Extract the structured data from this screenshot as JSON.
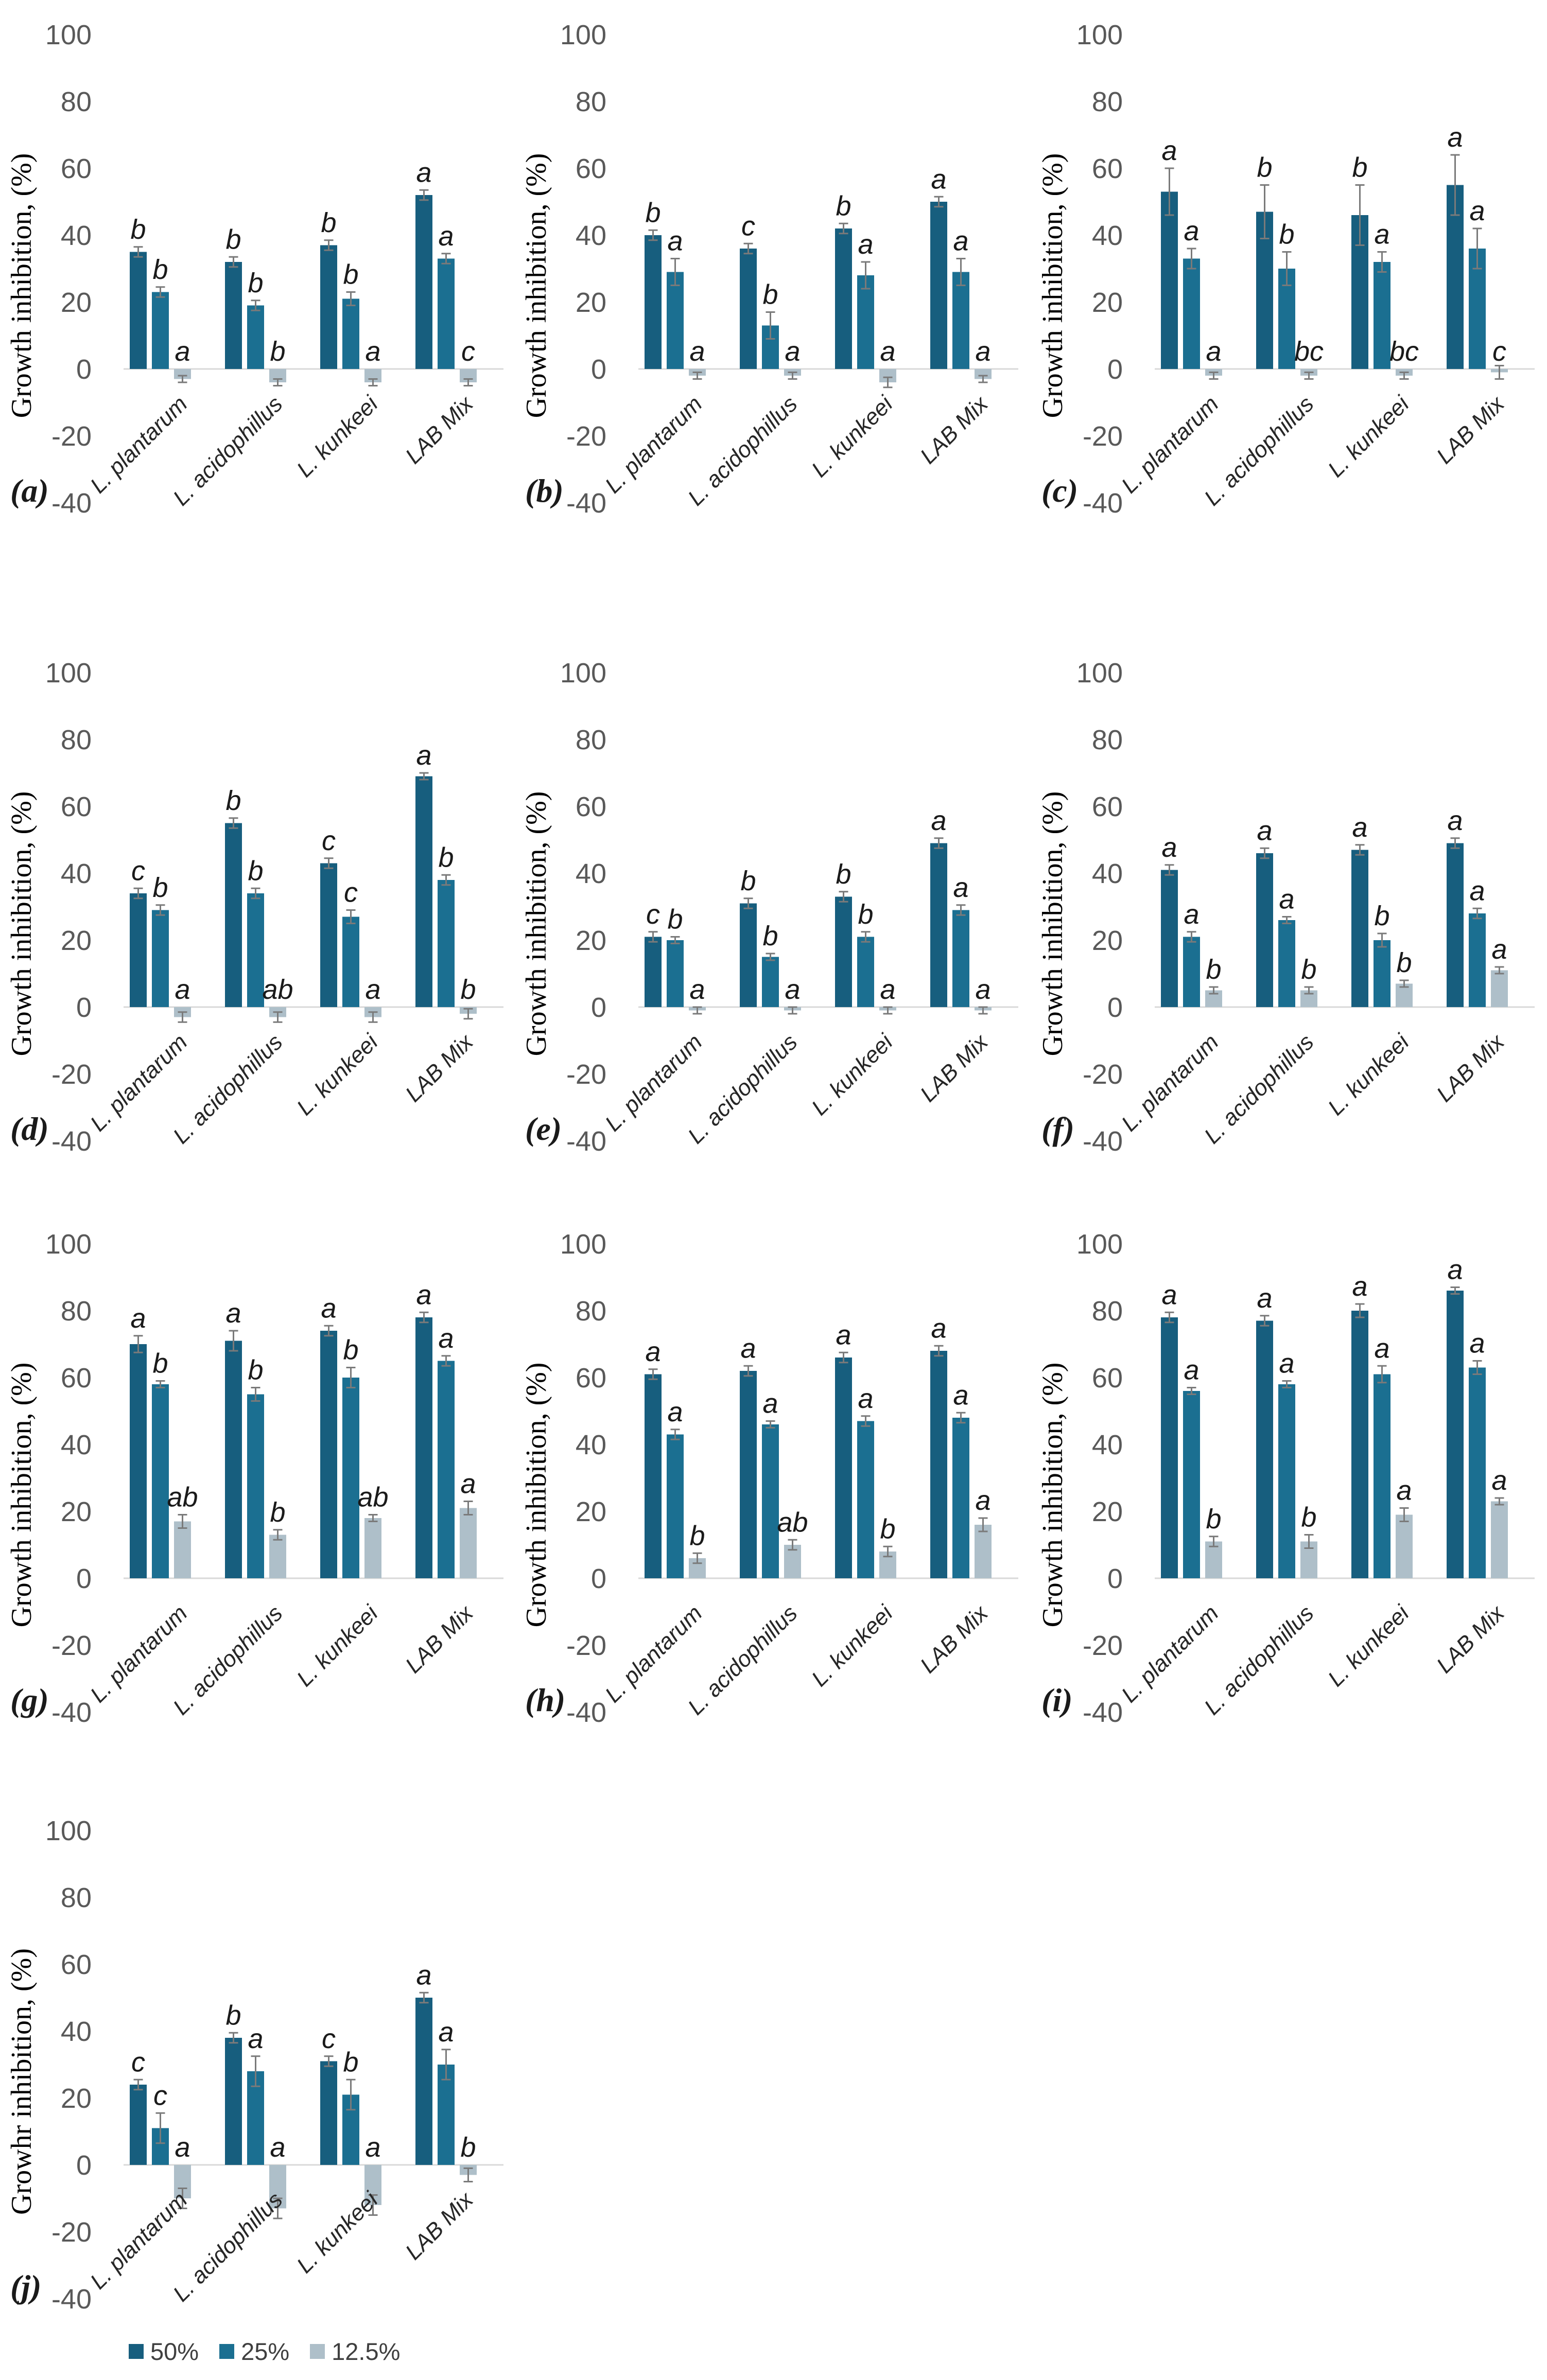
{
  "figure": {
    "background": "#ffffff",
    "description_title": ""
  },
  "legend": {
    "position": "bottom",
    "items": [
      {
        "label": "50%",
        "color": "#175e7e"
      },
      {
        "label": "25%",
        "color": "#1b6f91"
      },
      {
        "label": "12.5%",
        "color": "#aebfc9"
      }
    ]
  },
  "style_colors": {
    "tick_text": "#595959",
    "error_bar": "#7a7a7a",
    "zero_line": "#d9d9d9",
    "letter_text": "#1a1a1a",
    "category_text": "#262626",
    "ylabel_text": "#000000"
  },
  "chart_data": [
    {
      "type": "bar",
      "panel_label": "(a)",
      "ylabel": "Growth inhibition, (%)",
      "ylim": [
        -40,
        100
      ],
      "yticks": [
        100,
        80,
        60,
        40,
        20,
        0,
        -20,
        -40
      ],
      "grid": false,
      "categories": [
        "L. plantarum",
        "L. acidophillus",
        "L. kunkeei",
        "LAB Mix"
      ],
      "series": [
        {
          "name": "50%",
          "values": [
            35,
            32,
            37,
            52
          ],
          "errors": [
            1.5,
            1.5,
            1.5,
            1.5
          ],
          "letters": [
            "b",
            "b",
            "b",
            "a"
          ]
        },
        {
          "name": "25%",
          "values": [
            23,
            19,
            21,
            33
          ],
          "errors": [
            1.5,
            1.5,
            2,
            1.5
          ],
          "letters": [
            "b",
            "b",
            "b",
            "a"
          ]
        },
        {
          "name": "12.5%",
          "values": [
            -3,
            -4,
            -4,
            -4
          ],
          "errors": [
            1,
            1,
            1,
            1
          ],
          "letters": [
            "a",
            "b",
            "a",
            "c"
          ]
        }
      ]
    },
    {
      "type": "bar",
      "panel_label": "(b)",
      "ylabel": "Growth inhibition, (%)",
      "ylim": [
        -40,
        100
      ],
      "yticks": [
        100,
        80,
        60,
        40,
        20,
        0,
        -20,
        -40
      ],
      "grid": false,
      "categories": [
        "L. plantarum",
        "L. acidophillus",
        "L. kunkeei",
        "LAB Mix"
      ],
      "series": [
        {
          "name": "50%",
          "values": [
            40,
            36,
            42,
            50
          ],
          "errors": [
            1.5,
            1.5,
            1.5,
            1.5
          ],
          "letters": [
            "b",
            "c",
            "b",
            "a"
          ]
        },
        {
          "name": "25%",
          "values": [
            29,
            13,
            28,
            29
          ],
          "errors": [
            4,
            4,
            4,
            4
          ],
          "letters": [
            "a",
            "b",
            "a",
            "a"
          ]
        },
        {
          "name": "12.5%",
          "values": [
            -2,
            -2,
            -4,
            -3
          ],
          "errors": [
            1,
            1,
            1.5,
            1
          ],
          "letters": [
            "a",
            "a",
            "a",
            "a"
          ]
        }
      ]
    },
    {
      "type": "bar",
      "panel_label": "(c)",
      "ylabel": "Growth inhibition, (%)",
      "ylim": [
        -40,
        100
      ],
      "yticks": [
        100,
        80,
        60,
        40,
        20,
        0,
        -20,
        -40
      ],
      "grid": false,
      "categories": [
        "L. plantarum",
        "L. acidophillus",
        "L. kunkeei",
        "LAB Mix"
      ],
      "series": [
        {
          "name": "50%",
          "values": [
            53,
            47,
            46,
            55
          ],
          "errors": [
            7,
            8,
            9,
            9
          ],
          "letters": [
            "a",
            "b",
            "b",
            "a"
          ]
        },
        {
          "name": "25%",
          "values": [
            33,
            30,
            32,
            36
          ],
          "errors": [
            3,
            5,
            3,
            6
          ],
          "letters": [
            "a",
            "b",
            "a",
            "a"
          ]
        },
        {
          "name": "12.5%",
          "values": [
            -2,
            -2,
            -2,
            -1
          ],
          "errors": [
            1,
            1,
            1,
            2
          ],
          "letters": [
            "a",
            "bc",
            "bc",
            "c"
          ]
        }
      ]
    },
    {
      "type": "bar",
      "panel_label": "(d)",
      "ylabel": "Growth inhibition, (%)",
      "ylim": [
        -40,
        100
      ],
      "yticks": [
        100,
        80,
        60,
        40,
        20,
        0,
        -20,
        -40
      ],
      "grid": false,
      "categories": [
        "L. plantarum",
        "L. acidophillus",
        "L. kunkeei",
        "LAB Mix"
      ],
      "series": [
        {
          "name": "50%",
          "values": [
            34,
            55,
            43,
            69
          ],
          "errors": [
            1.5,
            1.5,
            1.5,
            1
          ],
          "letters": [
            "c",
            "b",
            "c",
            "a"
          ]
        },
        {
          "name": "25%",
          "values": [
            29,
            34,
            27,
            38
          ],
          "errors": [
            1.5,
            1.5,
            2,
            1.5
          ],
          "letters": [
            "b",
            "b",
            "c",
            "b"
          ]
        },
        {
          "name": "12.5%",
          "values": [
            -3,
            -3,
            -3,
            -2
          ],
          "errors": [
            1.5,
            1.5,
            1.5,
            1.5
          ],
          "letters": [
            "a",
            "ab",
            "a",
            "b"
          ]
        }
      ]
    },
    {
      "type": "bar",
      "panel_label": "(e)",
      "ylabel": "Growth inhibition, (%)",
      "ylim": [
        -40,
        100
      ],
      "yticks": [
        100,
        80,
        60,
        40,
        20,
        0,
        -20,
        -40
      ],
      "grid": false,
      "categories": [
        "L. plantarum",
        "L. acidophillus",
        "L. kunkeei",
        "LAB Mix"
      ],
      "series": [
        {
          "name": "50%",
          "values": [
            21,
            31,
            33,
            49
          ],
          "errors": [
            1.5,
            1.5,
            1.5,
            1.5
          ],
          "letters": [
            "c",
            "b",
            "b",
            "a"
          ]
        },
        {
          "name": "25%",
          "values": [
            20,
            15,
            21,
            29
          ],
          "errors": [
            1,
            1,
            1.5,
            1.5
          ],
          "letters": [
            "b",
            "b",
            "b",
            "a"
          ]
        },
        {
          "name": "12.5%",
          "values": [
            -1,
            -1,
            -1,
            -1
          ],
          "errors": [
            1,
            1,
            1,
            1
          ],
          "letters": [
            "a",
            "a",
            "a",
            "a"
          ]
        }
      ]
    },
    {
      "type": "bar",
      "panel_label": "(f)",
      "ylabel": "Growth inhibition, (%)",
      "ylim": [
        -40,
        100
      ],
      "yticks": [
        100,
        80,
        60,
        40,
        20,
        0,
        -20,
        -40
      ],
      "grid": false,
      "categories": [
        "L. plantarum",
        "L. acidophillus",
        "L. kunkeei",
        "LAB Mix"
      ],
      "series": [
        {
          "name": "50%",
          "values": [
            41,
            46,
            47,
            49
          ],
          "errors": [
            1.5,
            1.5,
            1.5,
            1.5
          ],
          "letters": [
            "a",
            "a",
            "a",
            "a"
          ]
        },
        {
          "name": "25%",
          "values": [
            21,
            26,
            20,
            28
          ],
          "errors": [
            1.5,
            1,
            2,
            1.5
          ],
          "letters": [
            "a",
            "a",
            "b",
            "a"
          ]
        },
        {
          "name": "12.5%",
          "values": [
            5,
            5,
            7,
            11
          ],
          "errors": [
            1,
            1,
            1,
            1
          ],
          "letters": [
            "b",
            "b",
            "b",
            "a"
          ]
        }
      ]
    },
    {
      "type": "bar",
      "panel_label": "(g)",
      "ylabel": "Growth inhibition, (%)",
      "ylim": [
        -40,
        100
      ],
      "yticks": [
        100,
        80,
        60,
        40,
        20,
        0,
        -20,
        -40
      ],
      "grid": false,
      "categories": [
        "L. plantarum",
        "L. acidophillus",
        "L. kunkeei",
        "LAB Mix"
      ],
      "series": [
        {
          "name": "50%",
          "values": [
            70,
            71,
            74,
            78
          ],
          "errors": [
            2.5,
            3,
            1.5,
            1.5
          ],
          "letters": [
            "a",
            "a",
            "a",
            "a"
          ]
        },
        {
          "name": "25%",
          "values": [
            58,
            55,
            60,
            65
          ],
          "errors": [
            1,
            2,
            3,
            1.5
          ],
          "letters": [
            "b",
            "b",
            "b",
            "a"
          ]
        },
        {
          "name": "12.5%",
          "values": [
            17,
            13,
            18,
            21
          ],
          "errors": [
            2,
            1.5,
            1,
            2
          ],
          "letters": [
            "ab",
            "b",
            "ab",
            "a"
          ]
        }
      ]
    },
    {
      "type": "bar",
      "panel_label": "(h)",
      "ylabel": "Growth inhibition, (%)",
      "ylim": [
        -40,
        100
      ],
      "yticks": [
        100,
        80,
        60,
        40,
        20,
        0,
        -20,
        -40
      ],
      "grid": false,
      "categories": [
        "L. plantarum",
        "L. acidophillus",
        "L. kunkeei",
        "LAB Mix"
      ],
      "series": [
        {
          "name": "50%",
          "values": [
            61,
            62,
            66,
            68
          ],
          "errors": [
            1.5,
            1.5,
            1.5,
            1.5
          ],
          "letters": [
            "a",
            "a",
            "a",
            "a"
          ]
        },
        {
          "name": "25%",
          "values": [
            43,
            46,
            47,
            48
          ],
          "errors": [
            1.5,
            1,
            1.5,
            1.5
          ],
          "letters": [
            "a",
            "a",
            "a",
            "a"
          ]
        },
        {
          "name": "12.5%",
          "values": [
            6,
            10,
            8,
            16
          ],
          "errors": [
            1.5,
            1.5,
            1.5,
            2
          ],
          "letters": [
            "b",
            "ab",
            "b",
            "a"
          ]
        }
      ]
    },
    {
      "type": "bar",
      "panel_label": "(i)",
      "ylabel": "Growth inhibition, (%)",
      "ylim": [
        -40,
        100
      ],
      "yticks": [
        100,
        80,
        60,
        40,
        20,
        0,
        -20,
        -40
      ],
      "grid": false,
      "categories": [
        "L. plantarum",
        "L. acidophillus",
        "L. kunkeei",
        "LAB Mix"
      ],
      "series": [
        {
          "name": "50%",
          "values": [
            78,
            77,
            80,
            86
          ],
          "errors": [
            1.5,
            1.5,
            2,
            1
          ],
          "letters": [
            "a",
            "a",
            "a",
            "a"
          ]
        },
        {
          "name": "25%",
          "values": [
            56,
            58,
            61,
            63
          ],
          "errors": [
            1,
            1,
            2.5,
            2
          ],
          "letters": [
            "a",
            "a",
            "a",
            "a"
          ]
        },
        {
          "name": "12.5%",
          "values": [
            11,
            11,
            19,
            23
          ],
          "errors": [
            1.5,
            2,
            2,
            1
          ],
          "letters": [
            "b",
            "b",
            "a",
            "a"
          ]
        }
      ]
    },
    {
      "type": "bar",
      "panel_label": "(j)",
      "ylabel": "Growhr inhibition, (%)",
      "ylim": [
        -40,
        100
      ],
      "yticks": [
        100,
        80,
        60,
        40,
        20,
        0,
        -20,
        -40
      ],
      "grid": false,
      "categories": [
        "L. plantarum",
        "L. acidophillus",
        "L. kunkeei",
        "LAB Mix"
      ],
      "series": [
        {
          "name": "50%",
          "values": [
            24,
            38,
            31,
            50
          ],
          "errors": [
            1.5,
            1.5,
            1.5,
            1.5
          ],
          "letters": [
            "c",
            "b",
            "c",
            "a"
          ]
        },
        {
          "name": "25%",
          "values": [
            11,
            28,
            21,
            30
          ],
          "errors": [
            4.5,
            4.5,
            4.5,
            4.5
          ],
          "letters": [
            "c",
            "a",
            "b",
            "a"
          ]
        },
        {
          "name": "12.5%",
          "values": [
            -10,
            -13,
            -12,
            -3
          ],
          "errors": [
            3,
            3,
            3,
            2
          ],
          "letters": [
            "a",
            "a",
            "a",
            "b"
          ]
        }
      ]
    }
  ]
}
